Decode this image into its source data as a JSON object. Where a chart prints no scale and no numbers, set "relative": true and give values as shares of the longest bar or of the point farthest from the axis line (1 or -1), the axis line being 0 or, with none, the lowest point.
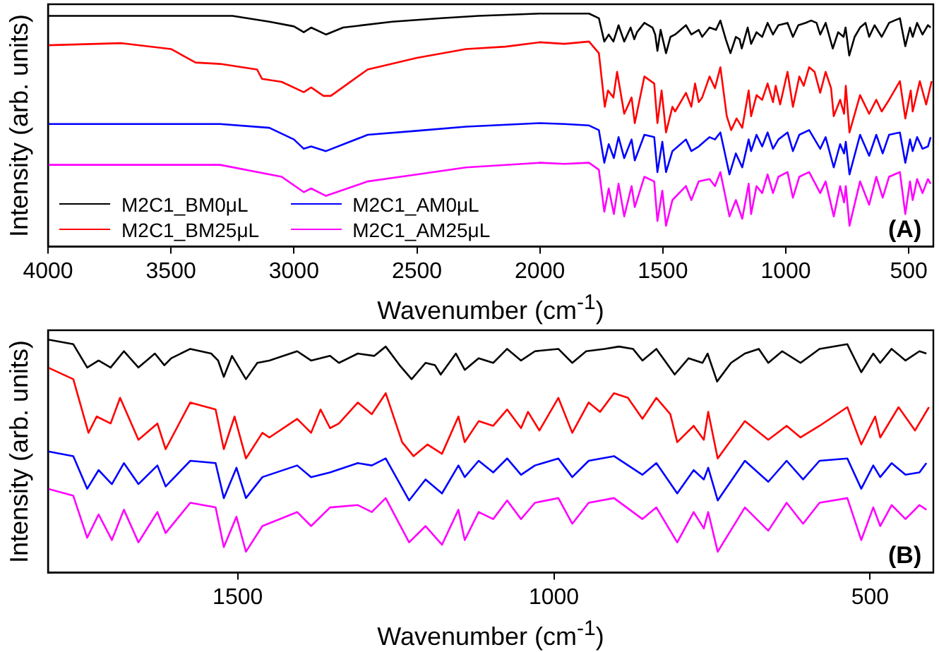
{
  "chart_data": [
    {
      "type": "line",
      "relative": true,
      "xlabel": "Wavenumber (cm$^{-1}$)",
      "ylabel": "Intensity (arb. units)",
      "xlim": [
        4000,
        400
      ],
      "xticks": [
        4000,
        3500,
        3000,
        2500,
        2000,
        1500,
        1000,
        500
      ],
      "legend": "bottom left",
      "annotations": [
        "(A)"
      ],
      "series": [
        {
          "name": "M2C1_BM0μL",
          "color": "#000000",
          "x": [
            4000,
            3600,
            3300,
            3250,
            3100,
            3000,
            2960,
            2930,
            2870,
            2800,
            2600,
            2400,
            2250,
            2000,
            1900,
            1800,
            1760,
            1738,
            1720,
            1701,
            1680,
            1657,
            1631,
            1616,
            1605,
            1575,
            1542,
            1531,
            1522,
            1509,
            1487,
            1469,
            1450,
            1406,
            1384,
            1354,
            1340,
            1310,
            1284,
            1266,
            1244,
            1225,
            1203,
            1188,
            1179,
            1155,
            1141,
            1119,
            1096,
            1074,
            1052,
            1030,
            993,
            971,
            949,
            920,
            897,
            875,
            860,
            838,
            809,
            787,
            765,
            757,
            742,
            720,
            698,
            676,
            661,
            639,
            610,
            580,
            536,
            514,
            495,
            484,
            466,
            444,
            422,
            411
          ],
          "values": [
            0.99,
            0.99,
            0.99,
            0.99,
            0.965,
            0.945,
            0.92,
            0.94,
            0.91,
            0.94,
            0.965,
            0.98,
            0.99,
            1.0,
            1.0,
            1.0,
            0.98,
            0.88,
            0.91,
            0.88,
            0.95,
            0.88,
            0.94,
            0.89,
            0.92,
            0.96,
            0.94,
            0.91,
            0.84,
            0.93,
            0.83,
            0.9,
            0.91,
            0.95,
            0.91,
            0.93,
            0.9,
            0.94,
            0.93,
            0.97,
            0.89,
            0.83,
            0.9,
            0.89,
            0.85,
            0.94,
            0.87,
            0.92,
            0.9,
            0.96,
            0.91,
            0.95,
            0.96,
            0.9,
            0.95,
            0.96,
            0.97,
            0.96,
            0.91,
            0.96,
            0.85,
            0.92,
            0.9,
            0.94,
            0.82,
            0.9,
            0.94,
            0.96,
            0.9,
            0.95,
            0.9,
            0.96,
            0.98,
            0.86,
            0.94,
            0.9,
            0.96,
            0.91,
            0.95,
            0.94
          ]
        },
        {
          "name": "M2C1_BM25μL",
          "color": "#ff0000",
          "x": [
            4000,
            3700,
            3500,
            3400,
            3300,
            3150,
            3130,
            3050,
            2960,
            2930,
            2880,
            2850,
            2780,
            2700,
            2500,
            2300,
            2140,
            2000,
            1900,
            1800,
            1760,
            1736,
            1723,
            1701,
            1686,
            1657,
            1627,
            1614,
            1575,
            1535,
            1522,
            1505,
            1487,
            1461,
            1450,
            1406,
            1384,
            1369,
            1354,
            1340,
            1310,
            1288,
            1266,
            1240,
            1222,
            1200,
            1177,
            1151,
            1141,
            1119,
            1096,
            1074,
            1052,
            1041,
            1023,
            993,
            971,
            945,
            927,
            905,
            883,
            860,
            838,
            816,
            805,
            779,
            763,
            756,
            741,
            698,
            661,
            632,
            610,
            580,
            536,
            514,
            492,
            484,
            455,
            429,
            407
          ],
          "values": [
            0.864,
            0.873,
            0.848,
            0.79,
            0.784,
            0.76,
            0.72,
            0.707,
            0.663,
            0.683,
            0.647,
            0.647,
            0.7,
            0.76,
            0.81,
            0.848,
            0.858,
            0.877,
            0.87,
            0.88,
            0.83,
            0.6,
            0.67,
            0.64,
            0.75,
            0.57,
            0.64,
            0.53,
            0.73,
            0.7,
            0.53,
            0.67,
            0.49,
            0.6,
            0.58,
            0.66,
            0.6,
            0.7,
            0.62,
            0.64,
            0.73,
            0.68,
            0.77,
            0.56,
            0.5,
            0.55,
            0.51,
            0.67,
            0.56,
            0.65,
            0.63,
            0.7,
            0.62,
            0.69,
            0.61,
            0.75,
            0.6,
            0.73,
            0.69,
            0.77,
            0.75,
            0.66,
            0.75,
            0.68,
            0.56,
            0.63,
            0.57,
            0.69,
            0.49,
            0.65,
            0.57,
            0.63,
            0.58,
            0.63,
            0.71,
            0.55,
            0.67,
            0.58,
            0.71,
            0.61,
            0.71
          ]
        },
        {
          "name": "M2C1_AM0μL",
          "color": "#0000ff",
          "x": [
            4000,
            3300,
            3100,
            3000,
            2960,
            2930,
            2870,
            2700,
            2500,
            2300,
            2000,
            1900,
            1800,
            1760,
            1738,
            1720,
            1699,
            1680,
            1657,
            1627,
            1614,
            1575,
            1535,
            1522,
            1502,
            1487,
            1461,
            1406,
            1384,
            1354,
            1310,
            1288,
            1266,
            1229,
            1203,
            1177,
            1151,
            1141,
            1119,
            1096,
            1074,
            1052,
            1030,
            993,
            971,
            945,
            905,
            860,
            838,
            805,
            779,
            763,
            756,
            741,
            698,
            661,
            632,
            606,
            580,
            536,
            514,
            495,
            484,
            466,
            444,
            422,
            411
          ],
          "values": [
            0.526,
            0.526,
            0.51,
            0.46,
            0.42,
            0.43,
            0.41,
            0.48,
            0.497,
            0.515,
            0.53,
            0.526,
            0.52,
            0.5,
            0.36,
            0.44,
            0.38,
            0.47,
            0.38,
            0.46,
            0.37,
            0.48,
            0.47,
            0.32,
            0.45,
            0.32,
            0.41,
            0.46,
            0.41,
            0.43,
            0.47,
            0.46,
            0.49,
            0.31,
            0.4,
            0.34,
            0.46,
            0.41,
            0.48,
            0.43,
            0.49,
            0.42,
            0.46,
            0.49,
            0.41,
            0.48,
            0.5,
            0.42,
            0.47,
            0.34,
            0.44,
            0.4,
            0.45,
            0.31,
            0.48,
            0.39,
            0.48,
            0.4,
            0.48,
            0.49,
            0.36,
            0.46,
            0.41,
            0.47,
            0.42,
            0.43,
            0.47
          ]
        },
        {
          "name": "M2C1_AM25μL",
          "color": "#ff00ff",
          "x": [
            4000,
            3300,
            3050,
            2960,
            2930,
            2870,
            2700,
            2500,
            2300,
            2000,
            1900,
            1800,
            1760,
            1738,
            1720,
            1699,
            1680,
            1657,
            1627,
            1614,
            1575,
            1535,
            1522,
            1502,
            1487,
            1461,
            1406,
            1384,
            1354,
            1310,
            1288,
            1266,
            1229,
            1203,
            1177,
            1151,
            1141,
            1119,
            1096,
            1074,
            1052,
            1030,
            993,
            971,
            945,
            905,
            860,
            838,
            805,
            779,
            763,
            756,
            741,
            698,
            661,
            632,
            606,
            580,
            536,
            514,
            495,
            484,
            466,
            444,
            422,
            411
          ],
          "values": [
            0.351,
            0.351,
            0.3,
            0.234,
            0.25,
            0.218,
            0.28,
            0.31,
            0.34,
            0.36,
            0.355,
            0.36,
            0.33,
            0.15,
            0.25,
            0.14,
            0.27,
            0.13,
            0.26,
            0.17,
            0.3,
            0.28,
            0.11,
            0.24,
            0.09,
            0.2,
            0.26,
            0.2,
            0.28,
            0.29,
            0.26,
            0.32,
            0.13,
            0.2,
            0.12,
            0.27,
            0.14,
            0.26,
            0.23,
            0.31,
            0.23,
            0.3,
            0.32,
            0.21,
            0.3,
            0.32,
            0.23,
            0.28,
            0.13,
            0.26,
            0.19,
            0.26,
            0.09,
            0.28,
            0.18,
            0.3,
            0.21,
            0.3,
            0.32,
            0.14,
            0.28,
            0.2,
            0.29,
            0.23,
            0.29,
            0.27
          ]
        }
      ]
    },
    {
      "type": "line",
      "relative": true,
      "xlabel": "Wavenumber (cm$^{-1}$)",
      "ylabel": "Intensity (arb. units)",
      "xlim": [
        1800,
        400
      ],
      "xticks": [
        1500,
        1000,
        500
      ],
      "annotations": [
        "(B)"
      ],
      "series": [
        {
          "color": "#000000",
          "x": [
            1800,
            1760,
            1738,
            1720,
            1701,
            1680,
            1657,
            1631,
            1616,
            1605,
            1575,
            1542,
            1531,
            1522,
            1509,
            1487,
            1469,
            1450,
            1406,
            1384,
            1354,
            1340,
            1310,
            1284,
            1266,
            1244,
            1225,
            1203,
            1188,
            1179,
            1155,
            1141,
            1119,
            1096,
            1074,
            1052,
            1030,
            993,
            971,
            949,
            920,
            897,
            875,
            860,
            838,
            809,
            787,
            765,
            757,
            742,
            720,
            698,
            676,
            661,
            639,
            610,
            580,
            536,
            514,
            495,
            484,
            466,
            444,
            422,
            411
          ],
          "values": [
            1.0,
            0.98,
            0.88,
            0.91,
            0.88,
            0.95,
            0.88,
            0.94,
            0.89,
            0.92,
            0.96,
            0.94,
            0.91,
            0.84,
            0.93,
            0.83,
            0.9,
            0.91,
            0.95,
            0.91,
            0.93,
            0.9,
            0.94,
            0.93,
            0.97,
            0.89,
            0.83,
            0.9,
            0.89,
            0.85,
            0.94,
            0.87,
            0.92,
            0.9,
            0.96,
            0.91,
            0.95,
            0.96,
            0.9,
            0.95,
            0.96,
            0.97,
            0.96,
            0.91,
            0.96,
            0.85,
            0.92,
            0.9,
            0.94,
            0.82,
            0.9,
            0.94,
            0.96,
            0.9,
            0.95,
            0.9,
            0.96,
            0.98,
            0.86,
            0.94,
            0.9,
            0.96,
            0.91,
            0.95,
            0.94
          ]
        },
        {
          "color": "#ff0000",
          "x": [
            1800,
            1760,
            1736,
            1723,
            1701,
            1686,
            1657,
            1627,
            1614,
            1575,
            1535,
            1522,
            1505,
            1487,
            1461,
            1450,
            1406,
            1384,
            1369,
            1354,
            1340,
            1310,
            1288,
            1266,
            1240,
            1222,
            1200,
            1177,
            1151,
            1141,
            1119,
            1096,
            1074,
            1052,
            1041,
            1023,
            993,
            971,
            945,
            927,
            905,
            883,
            860,
            838,
            816,
            805,
            779,
            763,
            756,
            741,
            698,
            661,
            632,
            610,
            580,
            536,
            514,
            492,
            484,
            455,
            429,
            407
          ],
          "values": [
            0.88,
            0.83,
            0.6,
            0.67,
            0.64,
            0.75,
            0.57,
            0.64,
            0.53,
            0.73,
            0.7,
            0.53,
            0.67,
            0.49,
            0.6,
            0.58,
            0.66,
            0.6,
            0.7,
            0.62,
            0.64,
            0.73,
            0.68,
            0.77,
            0.56,
            0.5,
            0.55,
            0.51,
            0.67,
            0.56,
            0.65,
            0.63,
            0.7,
            0.62,
            0.69,
            0.61,
            0.75,
            0.6,
            0.73,
            0.69,
            0.77,
            0.75,
            0.66,
            0.75,
            0.68,
            0.56,
            0.63,
            0.57,
            0.69,
            0.49,
            0.65,
            0.57,
            0.63,
            0.58,
            0.63,
            0.71,
            0.55,
            0.67,
            0.58,
            0.71,
            0.61,
            0.71
          ]
        },
        {
          "color": "#0000ff",
          "x": [
            1800,
            1760,
            1738,
            1720,
            1699,
            1680,
            1657,
            1627,
            1614,
            1575,
            1535,
            1522,
            1502,
            1487,
            1461,
            1406,
            1384,
            1354,
            1310,
            1288,
            1266,
            1229,
            1203,
            1177,
            1151,
            1141,
            1119,
            1096,
            1074,
            1052,
            1030,
            993,
            971,
            945,
            905,
            860,
            838,
            805,
            779,
            763,
            756,
            741,
            698,
            661,
            632,
            606,
            580,
            536,
            514,
            495,
            484,
            466,
            444,
            422,
            411
          ],
          "values": [
            0.52,
            0.5,
            0.36,
            0.44,
            0.38,
            0.47,
            0.38,
            0.46,
            0.37,
            0.48,
            0.47,
            0.32,
            0.45,
            0.32,
            0.41,
            0.46,
            0.41,
            0.43,
            0.47,
            0.46,
            0.49,
            0.31,
            0.4,
            0.34,
            0.46,
            0.41,
            0.48,
            0.43,
            0.49,
            0.42,
            0.46,
            0.49,
            0.41,
            0.48,
            0.5,
            0.42,
            0.47,
            0.34,
            0.44,
            0.4,
            0.45,
            0.31,
            0.48,
            0.39,
            0.48,
            0.4,
            0.48,
            0.49,
            0.36,
            0.46,
            0.41,
            0.47,
            0.42,
            0.43,
            0.47
          ]
        },
        {
          "color": "#ff00ff",
          "x": [
            1800,
            1760,
            1738,
            1720,
            1699,
            1680,
            1657,
            1627,
            1614,
            1575,
            1535,
            1522,
            1502,
            1487,
            1461,
            1406,
            1384,
            1354,
            1310,
            1288,
            1266,
            1229,
            1203,
            1177,
            1151,
            1141,
            1119,
            1096,
            1074,
            1052,
            1030,
            993,
            971,
            945,
            905,
            860,
            838,
            805,
            779,
            763,
            756,
            741,
            698,
            661,
            632,
            606,
            580,
            536,
            514,
            495,
            484,
            466,
            444,
            422,
            411
          ],
          "values": [
            0.36,
            0.33,
            0.15,
            0.25,
            0.14,
            0.27,
            0.13,
            0.26,
            0.17,
            0.3,
            0.28,
            0.11,
            0.24,
            0.09,
            0.2,
            0.26,
            0.2,
            0.28,
            0.29,
            0.26,
            0.32,
            0.13,
            0.2,
            0.12,
            0.27,
            0.14,
            0.26,
            0.23,
            0.31,
            0.23,
            0.3,
            0.32,
            0.21,
            0.3,
            0.32,
            0.23,
            0.28,
            0.13,
            0.26,
            0.19,
            0.26,
            0.09,
            0.28,
            0.18,
            0.3,
            0.21,
            0.3,
            0.32,
            0.14,
            0.28,
            0.2,
            0.29,
            0.23,
            0.29,
            0.27
          ]
        }
      ]
    }
  ]
}
